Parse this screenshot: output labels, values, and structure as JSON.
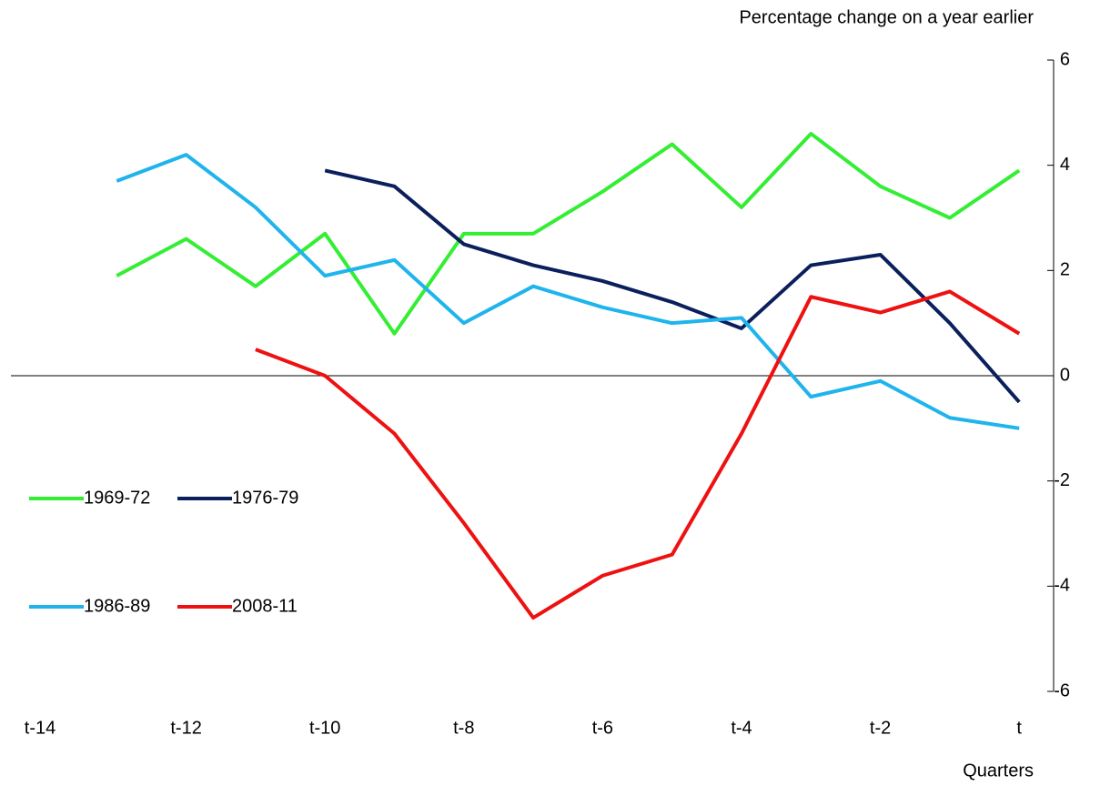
{
  "chart_data": {
    "type": "line",
    "y_label": "Percentage change on a year earlier",
    "x_label": "Quarters",
    "categories": [
      "t-14",
      null,
      "t-12",
      null,
      "t-10",
      null,
      "t-8",
      null,
      "t-6",
      null,
      "t-4",
      null,
      "t-2",
      null,
      "t"
    ],
    "series": [
      {
        "name": "1969-72",
        "color": "#33ee33",
        "values": [
          null,
          1.9,
          2.6,
          1.7,
          2.7,
          0.8,
          2.7,
          2.7,
          3.5,
          4.4,
          3.2,
          4.6,
          3.6,
          3.0,
          3.9
        ]
      },
      {
        "name": "1976-79",
        "color": "#0b1f5c",
        "values": [
          null,
          null,
          null,
          null,
          3.9,
          3.6,
          2.5,
          2.1,
          1.8,
          1.4,
          0.9,
          2.1,
          2.3,
          1.0,
          -0.5
        ]
      },
      {
        "name": "1986-89",
        "color": "#1fb4ec",
        "values": [
          null,
          3.7,
          4.2,
          3.2,
          1.9,
          2.2,
          1.0,
          1.7,
          1.3,
          1.0,
          1.1,
          -0.4,
          -0.1,
          -0.8,
          -1.0
        ]
      },
      {
        "name": "2008-11",
        "color": "#ee1111",
        "values": [
          null,
          null,
          null,
          0.5,
          0.0,
          -1.1,
          -2.8,
          -4.6,
          -3.8,
          -3.4,
          -1.1,
          1.5,
          1.2,
          1.6,
          0.8
        ]
      }
    ],
    "ylim": [
      -6,
      6
    ],
    "yticks": [
      -6,
      -4,
      -2,
      0,
      2,
      4,
      6
    ],
    "y_axis_side": "right"
  }
}
